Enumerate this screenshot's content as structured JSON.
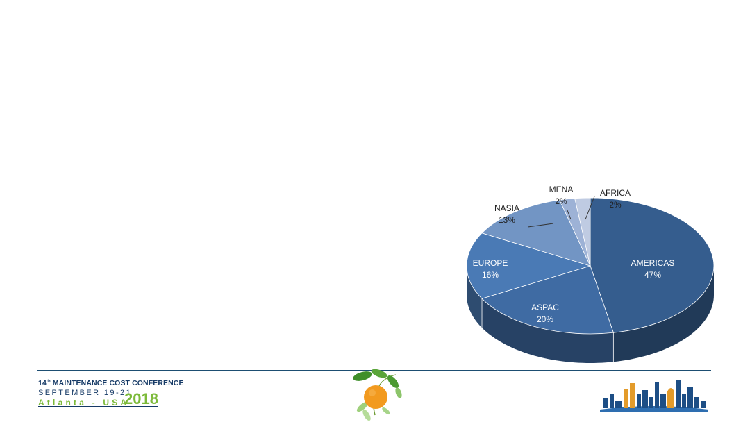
{
  "chart_data": {
    "type": "pie",
    "title": "",
    "categories": [
      "AMERICAS",
      "ASPAC",
      "EUROPE",
      "NASIA",
      "MENA",
      "AFRICA"
    ],
    "values": [
      47,
      20,
      16,
      13,
      2,
      2
    ],
    "labels": [
      "47%",
      "20%",
      "16%",
      "13%",
      "2%",
      "2%"
    ],
    "colors": [
      "#355d8e",
      "#3f6ba3",
      "#4a7ab5",
      "#7295c4",
      "#9db2d6",
      "#bfcbe2"
    ],
    "style": "3d-exploded-none",
    "legend": "none",
    "label_position": [
      "inside",
      "inside",
      "inside",
      "outside",
      "outside",
      "outside"
    ]
  },
  "footer": {
    "conference_title_prefix": "14",
    "conference_title_sup": "th",
    "conference_title": "MAINTENANCE COST CONFERENCE",
    "dates": "SEPTEMBER 19-21",
    "city": "Atlanta - USA",
    "year": "2018",
    "orange_logo_icon": "orange-tree-icon",
    "skyline_logo_icon": "atlanta-skyline-icon",
    "line_color": "#1d4e72"
  }
}
